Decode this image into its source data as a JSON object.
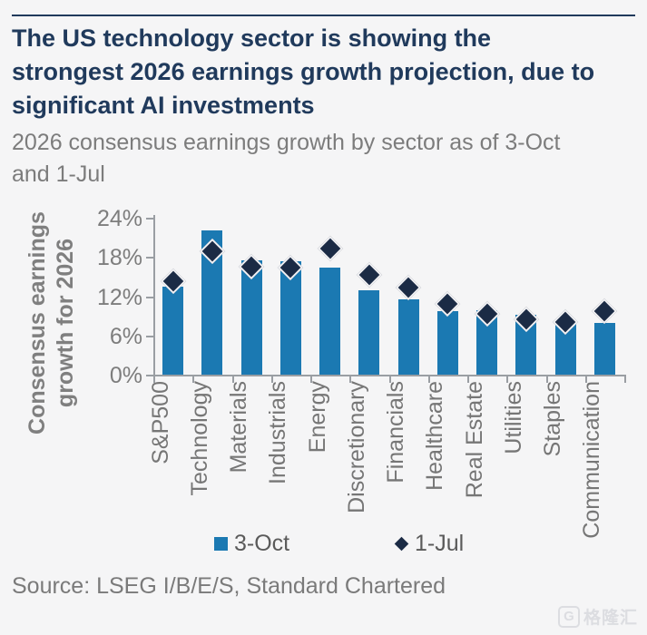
{
  "page": {
    "background": "#f5f5f6",
    "accent_navy": "#203a5c"
  },
  "header": {
    "title_lines": [
      "The US technology sector is showing the",
      "strongest 2026 earnings growth projection, due to",
      "significant AI investments"
    ],
    "subtitle_lines": [
      "2026 consensus earnings growth by sector as of 3-Oct",
      "and 1-Jul"
    ]
  },
  "chart_data": {
    "type": "bar+scatter",
    "categories": [
      "S&P500",
      "Technology",
      "Materials",
      "Industrials",
      "Energy",
      "Discretionary",
      "Financials",
      "Healthcare",
      "Real Estate",
      "Utilities",
      "Staples",
      "Communication"
    ],
    "series": [
      {
        "name": "3-Oct",
        "type": "bar",
        "color": "#1b79b2",
        "values": [
          13.4,
          22.1,
          17.5,
          17.3,
          16.4,
          12.9,
          11.5,
          9.7,
          9.8,
          9.2,
          7.7,
          7.9
        ]
      },
      {
        "name": "1-Jul",
        "type": "scatter",
        "marker": "diamond",
        "color": "#1b2b45",
        "values": [
          14.3,
          18.8,
          16.5,
          16.4,
          19.3,
          15.3,
          13.3,
          10.8,
          9.3,
          8.4,
          8.0,
          9.7
        ]
      }
    ],
    "ylabel_lines": [
      "Consensus earnings",
      "growth for 2026"
    ],
    "ylim": [
      0,
      24
    ],
    "yticks": [
      {
        "value": 0,
        "label": "0%"
      },
      {
        "value": 6,
        "label": "6%"
      },
      {
        "value": 12,
        "label": "12%"
      },
      {
        "value": 18,
        "label": "18%"
      },
      {
        "value": 24,
        "label": "24%"
      }
    ],
    "grid": false,
    "legend_position": "bottom"
  },
  "legend": {
    "items": [
      {
        "label": "3-Oct",
        "marker": "square",
        "color": "#1b79b2"
      },
      {
        "label": "1-Jul",
        "marker": "diamond",
        "color": "#1b2b45"
      }
    ]
  },
  "source": {
    "text": "Source: LSEG I/B/E/S, Standard Chartered"
  },
  "watermark": {
    "logo_text": "G",
    "text": "格隆汇"
  }
}
